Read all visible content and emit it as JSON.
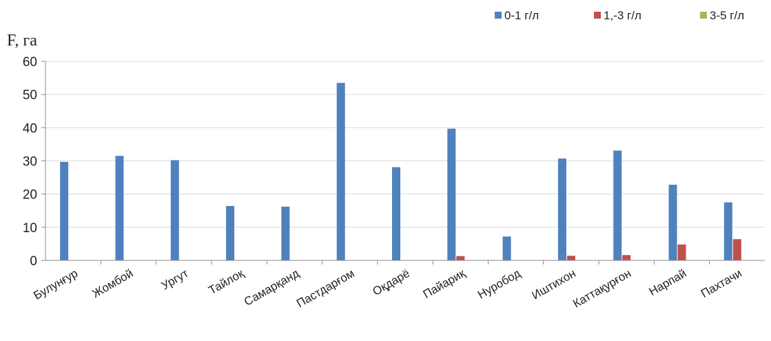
{
  "chart_data": {
    "type": "bar",
    "ylabel": "F, га",
    "ylim": [
      0,
      60
    ],
    "yticks": [
      "0",
      "10",
      "20",
      "30",
      "40",
      "50",
      "60"
    ],
    "grid": true,
    "legend_position": "top-right",
    "categories": [
      "Булунғур",
      "Жомбой",
      "Ургут",
      "Тайлоқ",
      "Самарқанд",
      "Пастдарғом",
      "Оқдарё",
      "Пайариқ",
      "Нуробод",
      "Иштихон",
      "Каттақурғон",
      "Нарпай",
      "Пахтачи"
    ],
    "series": [
      {
        "name": "0-1 г/л",
        "color": "#4f81bd",
        "values": [
          29.7,
          31.5,
          30.2,
          16.4,
          16.2,
          53.5,
          28.1,
          39.7,
          7.2,
          30.7,
          33.1,
          22.8,
          17.5
        ]
      },
      {
        "name": "1,-3 г/л",
        "color": "#c0504d",
        "values": [
          0,
          0,
          0,
          0,
          0,
          0,
          0,
          1.3,
          0,
          1.4,
          1.6,
          4.8,
          6.4
        ]
      },
      {
        "name": "3-5 г/л",
        "color": "#9bbb59",
        "values": [
          0,
          0,
          0,
          0,
          0,
          0,
          0,
          0,
          0,
          0,
          0,
          0,
          0
        ]
      }
    ]
  }
}
